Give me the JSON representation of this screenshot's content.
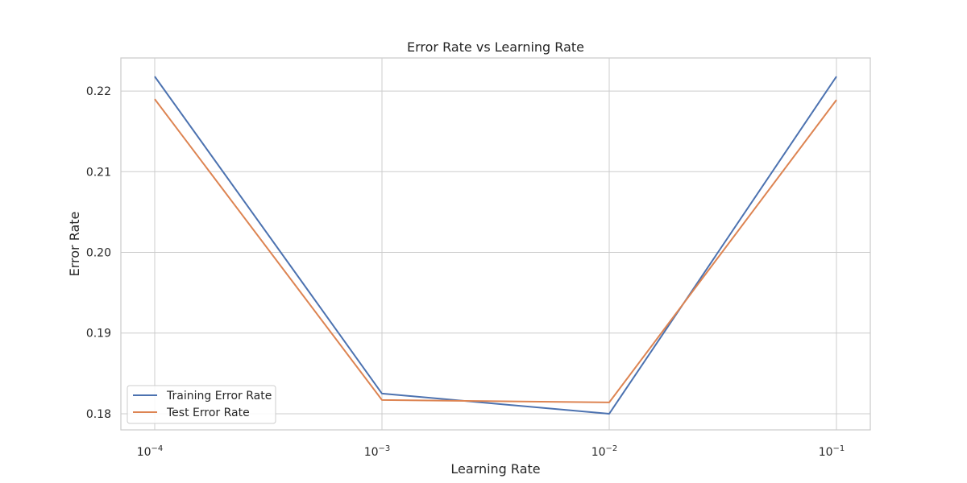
{
  "chart_data": {
    "type": "line",
    "title": "Error Rate vs Learning Rate",
    "xlabel": "Learning Rate",
    "ylabel": "Error Rate",
    "xscale": "log",
    "x": [
      0.0001,
      0.001,
      0.01,
      0.1
    ],
    "x_tick_labels": [
      {
        "base": "10",
        "exp": "−4"
      },
      {
        "base": "10",
        "exp": "−3"
      },
      {
        "base": "10",
        "exp": "−2"
      },
      {
        "base": "10",
        "exp": "−1"
      }
    ],
    "y_ticks": [
      0.18,
      0.19,
      0.2,
      0.21,
      0.22
    ],
    "y_tick_labels": [
      "0.18",
      "0.19",
      "0.20",
      "0.21",
      "0.22"
    ],
    "ylim": [
      0.178,
      0.2241
    ],
    "series": [
      {
        "name": "Training Error Rate",
        "color": "#4c72b0",
        "values": [
          0.2218,
          0.1825,
          0.18,
          0.2218
        ]
      },
      {
        "name": "Test Error Rate",
        "color": "#dd8452",
        "values": [
          0.219,
          0.1817,
          0.1814,
          0.2189
        ]
      }
    ],
    "grid": true,
    "legend_position": "lower-left"
  }
}
